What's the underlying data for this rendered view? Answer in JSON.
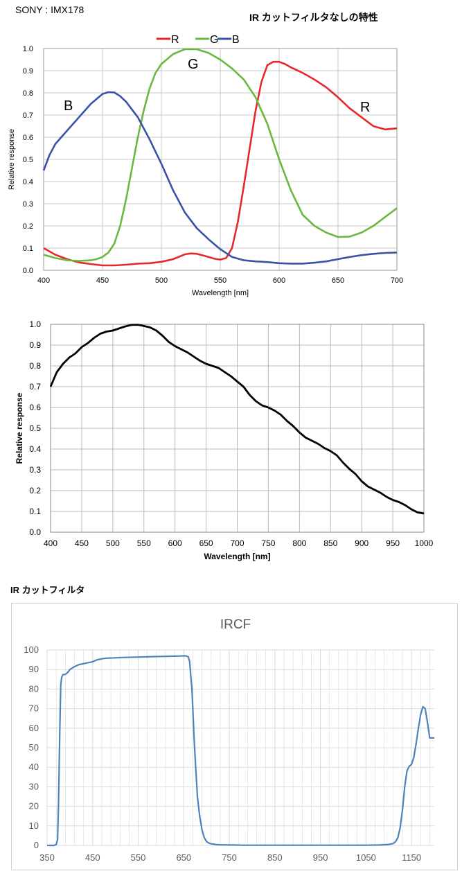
{
  "header": {
    "sensor_label": "SONY : IMX178",
    "chart1_title": "IR カットフィルタなしの特性",
    "chart3_caption": "IR カットフィルタ"
  },
  "chart_data": [
    {
      "type": "line",
      "title": "",
      "xlabel": "Wavelength [nm]",
      "ylabel": "Relative response",
      "xlim": [
        400,
        700
      ],
      "ylim": [
        0,
        1.0
      ],
      "x_ticks": [
        "400",
        "450",
        "500",
        "550",
        "600",
        "650",
        "700"
      ],
      "y_ticks": [
        "0.0",
        "0.1",
        "0.2",
        "0.3",
        "0.4",
        "0.5",
        "0.6",
        "0.7",
        "0.8",
        "0.9",
        "1.0"
      ],
      "grid": true,
      "legend_position": "top-center",
      "annotations": [
        "B",
        "G",
        "R"
      ],
      "series": [
        {
          "name": "R",
          "color": "#e8272a",
          "x": [
            400,
            410,
            420,
            430,
            440,
            450,
            460,
            470,
            480,
            490,
            500,
            510,
            520,
            525,
            530,
            540,
            545,
            550,
            555,
            560,
            565,
            570,
            575,
            580,
            585,
            590,
            595,
            600,
            605,
            610,
            620,
            630,
            640,
            650,
            660,
            670,
            680,
            690,
            700
          ],
          "y": [
            0.1,
            0.07,
            0.05,
            0.035,
            0.028,
            0.022,
            0.022,
            0.025,
            0.03,
            0.032,
            0.038,
            0.05,
            0.072,
            0.076,
            0.074,
            0.06,
            0.052,
            0.048,
            0.055,
            0.1,
            0.22,
            0.38,
            0.55,
            0.72,
            0.85,
            0.925,
            0.94,
            0.94,
            0.93,
            0.915,
            0.89,
            0.86,
            0.825,
            0.78,
            0.73,
            0.69,
            0.65,
            0.635,
            0.64
          ]
        },
        {
          "name": "G",
          "color": "#6ab83f",
          "x": [
            400,
            410,
            420,
            430,
            440,
            445,
            450,
            455,
            460,
            465,
            470,
            475,
            480,
            485,
            490,
            495,
            500,
            510,
            520,
            530,
            540,
            550,
            560,
            570,
            580,
            590,
            600,
            610,
            620,
            630,
            640,
            650,
            660,
            670,
            680,
            690,
            700
          ],
          "y": [
            0.07,
            0.055,
            0.045,
            0.042,
            0.045,
            0.05,
            0.06,
            0.08,
            0.12,
            0.2,
            0.32,
            0.46,
            0.6,
            0.72,
            0.82,
            0.89,
            0.93,
            0.975,
            0.997,
            0.997,
            0.98,
            0.95,
            0.91,
            0.86,
            0.78,
            0.66,
            0.5,
            0.36,
            0.25,
            0.2,
            0.17,
            0.15,
            0.152,
            0.17,
            0.2,
            0.24,
            0.28
          ]
        },
        {
          "name": "B",
          "color": "#3a51a8",
          "x": [
            400,
            405,
            410,
            420,
            430,
            440,
            450,
            455,
            460,
            465,
            470,
            480,
            490,
            500,
            510,
            520,
            530,
            540,
            550,
            560,
            570,
            580,
            590,
            600,
            610,
            620,
            630,
            640,
            650,
            660,
            670,
            680,
            690,
            700
          ],
          "y": [
            0.45,
            0.52,
            0.57,
            0.63,
            0.69,
            0.75,
            0.795,
            0.803,
            0.802,
            0.785,
            0.76,
            0.69,
            0.59,
            0.48,
            0.36,
            0.26,
            0.19,
            0.14,
            0.095,
            0.06,
            0.045,
            0.04,
            0.037,
            0.032,
            0.03,
            0.03,
            0.034,
            0.04,
            0.05,
            0.06,
            0.068,
            0.074,
            0.078,
            0.08
          ]
        }
      ]
    },
    {
      "type": "line",
      "title": "",
      "xlabel": "Wavelength [nm]",
      "ylabel": "Relative response",
      "xlim": [
        400,
        1000
      ],
      "ylim": [
        0,
        1.0
      ],
      "x_ticks": [
        "400",
        "450",
        "500",
        "550",
        "600",
        "650",
        "700",
        "750",
        "800",
        "850",
        "900",
        "950",
        "1000"
      ],
      "y_ticks": [
        "0.0",
        "0.1",
        "0.2",
        "0.3",
        "0.4",
        "0.5",
        "0.6",
        "0.7",
        "0.8",
        "0.9",
        "1.0"
      ],
      "grid": true,
      "series": [
        {
          "name": "",
          "color": "#000000",
          "x": [
            400,
            410,
            420,
            430,
            440,
            450,
            460,
            470,
            480,
            490,
            500,
            510,
            520,
            530,
            540,
            550,
            560,
            570,
            580,
            590,
            600,
            610,
            620,
            630,
            640,
            650,
            660,
            670,
            680,
            690,
            700,
            710,
            720,
            730,
            740,
            750,
            760,
            770,
            780,
            790,
            800,
            810,
            820,
            830,
            840,
            850,
            860,
            870,
            880,
            890,
            900,
            910,
            920,
            930,
            940,
            950,
            960,
            970,
            980,
            990,
            1000
          ],
          "y": [
            0.7,
            0.77,
            0.81,
            0.84,
            0.86,
            0.89,
            0.91,
            0.935,
            0.955,
            0.965,
            0.97,
            0.98,
            0.99,
            0.997,
            0.998,
            0.992,
            0.985,
            0.97,
            0.945,
            0.915,
            0.895,
            0.88,
            0.865,
            0.845,
            0.825,
            0.81,
            0.8,
            0.79,
            0.77,
            0.75,
            0.725,
            0.7,
            0.66,
            0.63,
            0.61,
            0.6,
            0.585,
            0.565,
            0.535,
            0.51,
            0.48,
            0.455,
            0.44,
            0.425,
            0.405,
            0.39,
            0.37,
            0.335,
            0.305,
            0.28,
            0.245,
            0.22,
            0.205,
            0.19,
            0.17,
            0.155,
            0.145,
            0.13,
            0.11,
            0.095,
            0.09
          ]
        }
      ]
    },
    {
      "type": "line",
      "title": "IRCF",
      "xlabel": "",
      "ylabel": "",
      "xlim": [
        350,
        1200
      ],
      "ylim": [
        0,
        100
      ],
      "x_ticks": [
        "350",
        "450",
        "550",
        "650",
        "750",
        "850",
        "950",
        "1050",
        "1150"
      ],
      "y_ticks": [
        "0",
        "10",
        "20",
        "30",
        "40",
        "50",
        "60",
        "70",
        "80",
        "90",
        "100"
      ],
      "grid": true,
      "series": [
        {
          "name": "",
          "color": "#4f81bd",
          "x": [
            350,
            365,
            370,
            373,
            375,
            378,
            380,
            382,
            385,
            390,
            395,
            400,
            410,
            420,
            430,
            440,
            450,
            460,
            470,
            480,
            500,
            520,
            550,
            580,
            600,
            620,
            640,
            650,
            655,
            660,
            663,
            665,
            668,
            670,
            672,
            675,
            678,
            680,
            685,
            690,
            695,
            700,
            705,
            710,
            720,
            730,
            740,
            750,
            760,
            780,
            800,
            820,
            850,
            900,
            950,
            1000,
            1050,
            1080,
            1100,
            1110,
            1115,
            1120,
            1125,
            1130,
            1135,
            1140,
            1145,
            1150,
            1155,
            1160,
            1165,
            1170,
            1175,
            1180,
            1185,
            1190,
            1195,
            1200
          ],
          "y": [
            0,
            0,
            0.5,
            3,
            20,
            60,
            82,
            86,
            87.5,
            87.5,
            88.5,
            90,
            91.5,
            92.5,
            93,
            93.5,
            94,
            95,
            95.5,
            95.8,
            96,
            96.2,
            96.4,
            96.6,
            96.7,
            96.8,
            96.9,
            97,
            97,
            96.5,
            94,
            88,
            80,
            70,
            58,
            45,
            33,
            25,
            15,
            8,
            4,
            2,
            1.2,
            0.8,
            0.5,
            0.3,
            0.3,
            0.2,
            0.2,
            0.1,
            0.1,
            0.1,
            0.1,
            0.1,
            0.1,
            0.1,
            0.1,
            0.2,
            0.5,
            1,
            2,
            4,
            9,
            18,
            30,
            38,
            40.5,
            41.5,
            45,
            52,
            60,
            67,
            71,
            70,
            63,
            55,
            55,
            55
          ]
        }
      ]
    }
  ]
}
